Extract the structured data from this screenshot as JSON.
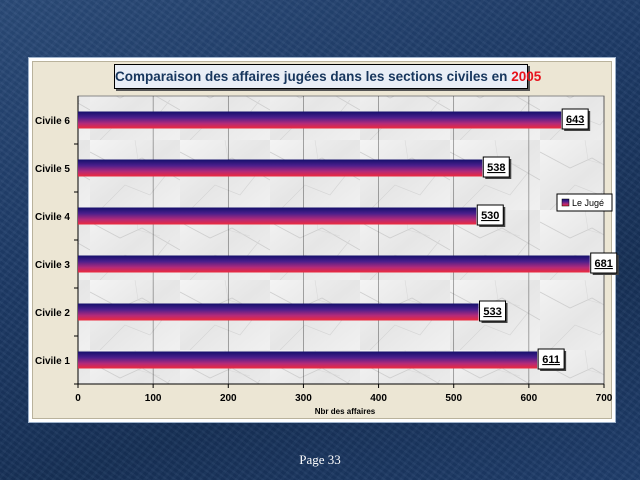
{
  "slide": {
    "page_label": "Page 33"
  },
  "chart_data": {
    "type": "bar",
    "orientation": "horizontal",
    "title_prefix": "Comparaison des affaires jugées dans les sections civiles en",
    "title_year": "2005",
    "categories": [
      "Civile 1",
      "Civile 2",
      "Civile 3",
      "Civile 4",
      "Civile 5",
      "Civile 6"
    ],
    "series": [
      {
        "name": "Le Jugé",
        "values": [
          611,
          533,
          681,
          530,
          538,
          643
        ]
      }
    ],
    "xlabel": "Nbr des affaires",
    "ylabel": "",
    "xlim": [
      0,
      700
    ],
    "xticks": [
      0,
      100,
      200,
      300,
      400,
      500,
      600,
      700
    ],
    "grid": true,
    "legend_position": "right",
    "colors": {
      "bar_top": "#1b1770",
      "bar_mid": "#8a2a9a",
      "bar_bottom": "#e0204e",
      "title_year": "#e8121c",
      "title_text": "#17365d"
    }
  }
}
